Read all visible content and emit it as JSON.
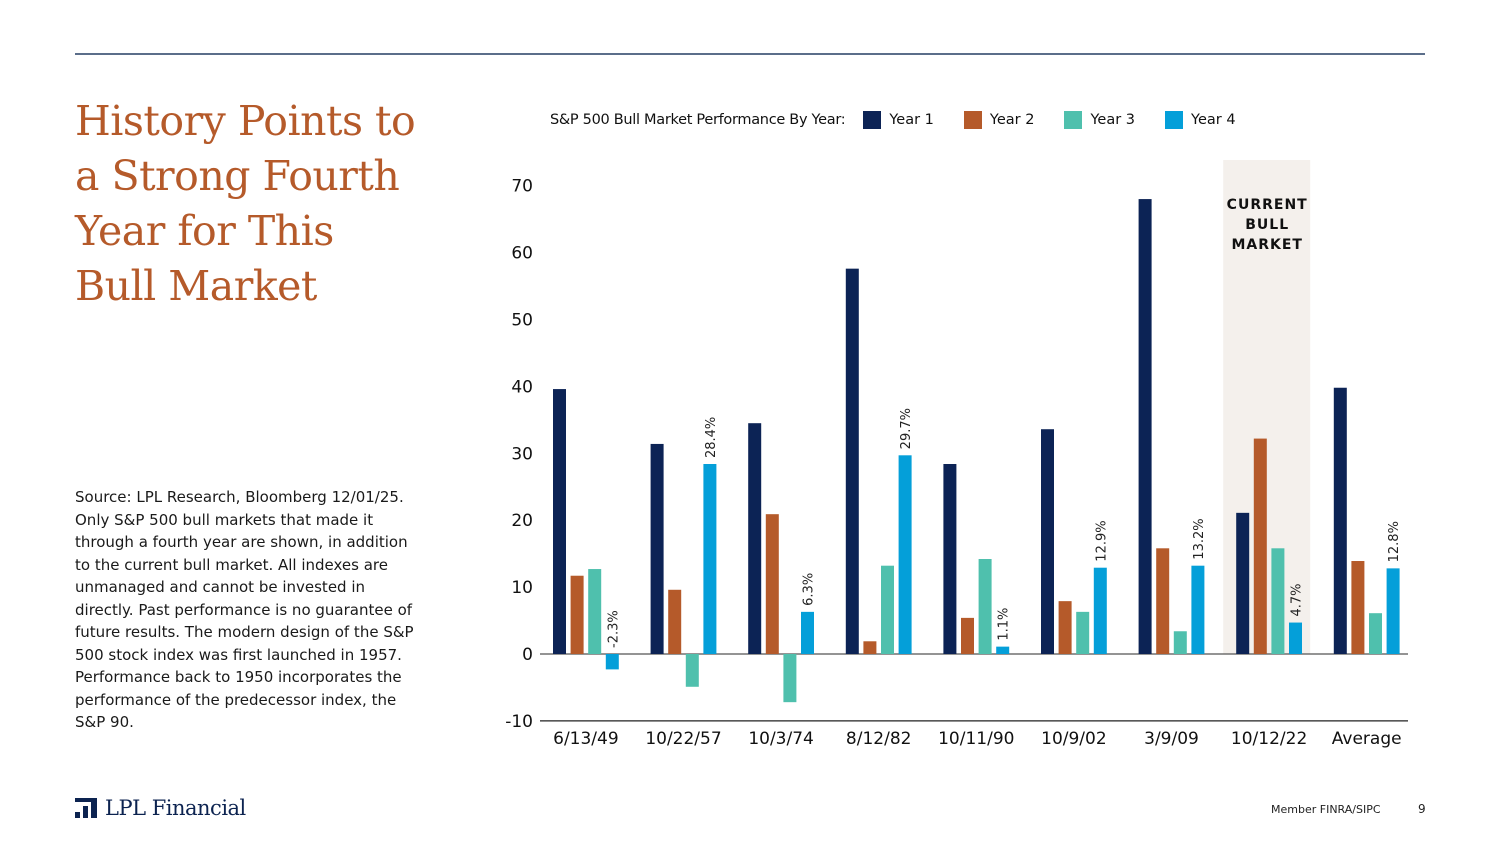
{
  "title_lines": [
    "History Points to",
    "a Strong Fourth",
    "Year for This",
    "Bull Market"
  ],
  "source_note": "Source: LPL Research, Bloomberg 12/01/25. Only S&P 500 bull markets that made it through a fourth year are shown, in addition to the current bull market. All indexes are unmanaged and cannot be invested in directly. Past performance is no guarantee of future results. The modern design of the S&P 500 stock index was first launched in 1957. Performance back to 1950 incorporates the performance of the predecessor index, the S&P 90.",
  "logo_text": "LPL Financial",
  "footer": {
    "member": "Member FINRA/SIPC",
    "page": "9"
  },
  "chart_data": {
    "type": "bar",
    "title": "S&P 500 Bull Market Performance By Year:",
    "xlabel": "",
    "ylabel": "",
    "ylim": [
      -10,
      70
    ],
    "yticks": [
      -10,
      0,
      10,
      20,
      30,
      40,
      50,
      60,
      70
    ],
    "grid": false,
    "legend_position": "top",
    "categories": [
      "6/13/49",
      "10/22/57",
      "10/3/74",
      "8/12/82",
      "10/11/90",
      "10/9/02",
      "3/9/09",
      "10/12/22",
      "Average"
    ],
    "series": [
      {
        "name": "Year 1",
        "color": "#0c2355",
        "values": [
          39.6,
          31.4,
          34.5,
          57.6,
          28.4,
          33.6,
          68.0,
          21.1,
          39.8
        ]
      },
      {
        "name": "Year 2",
        "color": "#b55a2a",
        "values": [
          11.7,
          9.6,
          20.9,
          1.9,
          5.4,
          7.9,
          15.8,
          32.2,
          13.9
        ]
      },
      {
        "name": "Year 3",
        "color": "#4fc0ad",
        "values": [
          12.7,
          -4.9,
          -7.2,
          13.2,
          14.2,
          6.3,
          3.4,
          15.8,
          6.1
        ]
      },
      {
        "name": "Year 4",
        "color": "#049fd9",
        "values": [
          -2.3,
          28.4,
          6.3,
          29.7,
          1.1,
          12.9,
          13.2,
          4.7,
          12.8
        ]
      }
    ],
    "data_labels": {
      "series": "Year 4",
      "labels": [
        "-2.3%",
        "28.4%",
        "6.3%",
        "29.7%",
        "1.1%",
        "12.9%",
        "13.2%",
        "4.7%",
        "12.8%"
      ]
    },
    "highlight": {
      "category": "10/12/22",
      "label_lines": [
        "CURRENT",
        "BULL",
        "MARKET"
      ],
      "color": "#f4f0ec"
    }
  }
}
